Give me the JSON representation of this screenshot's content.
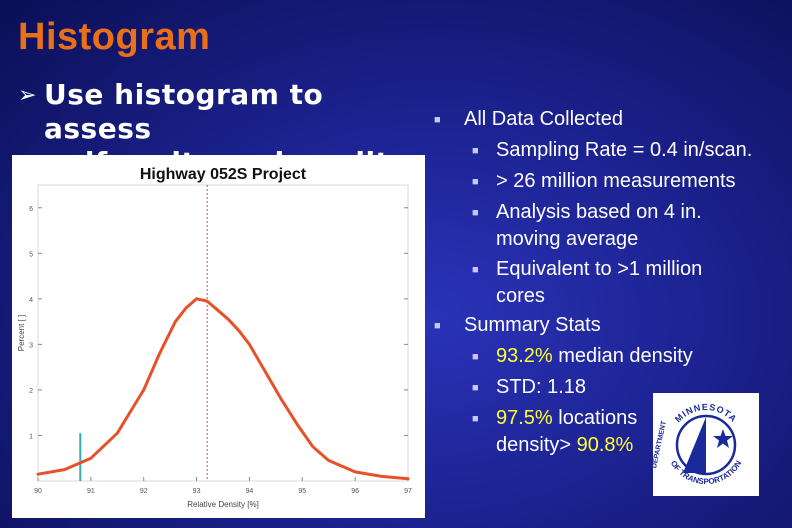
{
  "slide": {
    "title": "Histogram",
    "lead_arrow": "➢",
    "lead_line1": "Use histogram to assess",
    "lead_line2": "uniformity and quality.",
    "bullet_glyph": "■"
  },
  "bullets": {
    "b1": "All Data Collected",
    "b1_1": "Sampling Rate = 0.4 in/scan.",
    "b1_2": "> 26 million measurements",
    "b1_3a": "Analysis based on 4 in.",
    "b1_3b": "moving average",
    "b1_4a": "Equivalent to >1 million",
    "b1_4b": "cores",
    "b2": "Summary Stats",
    "b2_1_hl": "93.2%",
    "b2_1_rest": " median density",
    "b2_2": "STD: 1.18",
    "b2_3_hl": "97.5%",
    "b2_3_rest": " locations",
    "b2_3b_pre": "density> ",
    "b2_3b_hl": "90.8%"
  },
  "logo": {
    "top_text": "MINNESOTA",
    "left_text": "DEPARTMENT",
    "bottom_text": "OF TRANSPORTATION",
    "color": "#1a2a9a"
  },
  "chart_data": {
    "type": "line",
    "title": "Highway 052S Project",
    "xlabel": "Relative Density [%]",
    "ylabel": "Percent [ ]",
    "xlim": [
      90,
      97
    ],
    "ylim": [
      0,
      6.5
    ],
    "xticks": [
      "90",
      "91",
      "92",
      "93",
      "94",
      "95",
      "96",
      "97"
    ],
    "yticks": [
      "1",
      "2",
      "3",
      "4",
      "5",
      "6"
    ],
    "series": [
      {
        "color": "#e8502a",
        "x": [
          90.0,
          90.5,
          91.0,
          91.5,
          92.0,
          92.3,
          92.6,
          92.8,
          93.0,
          93.2,
          93.4,
          93.6,
          93.8,
          94.0,
          94.3,
          94.6,
          94.9,
          95.2,
          95.5,
          96.0,
          96.5,
          97.0
        ],
        "y": [
          0.15,
          0.25,
          0.5,
          1.05,
          2.0,
          2.8,
          3.5,
          3.8,
          4.0,
          3.95,
          3.75,
          3.55,
          3.3,
          3.0,
          2.4,
          1.8,
          1.25,
          0.75,
          0.45,
          0.2,
          0.1,
          0.05
        ]
      }
    ],
    "markers": [
      {
        "x": 93.2,
        "style": "dotted",
        "color": "#c05050"
      },
      {
        "x": 90.8,
        "y": 1.05,
        "style": "solid",
        "color": "#2ab0b0"
      }
    ]
  }
}
